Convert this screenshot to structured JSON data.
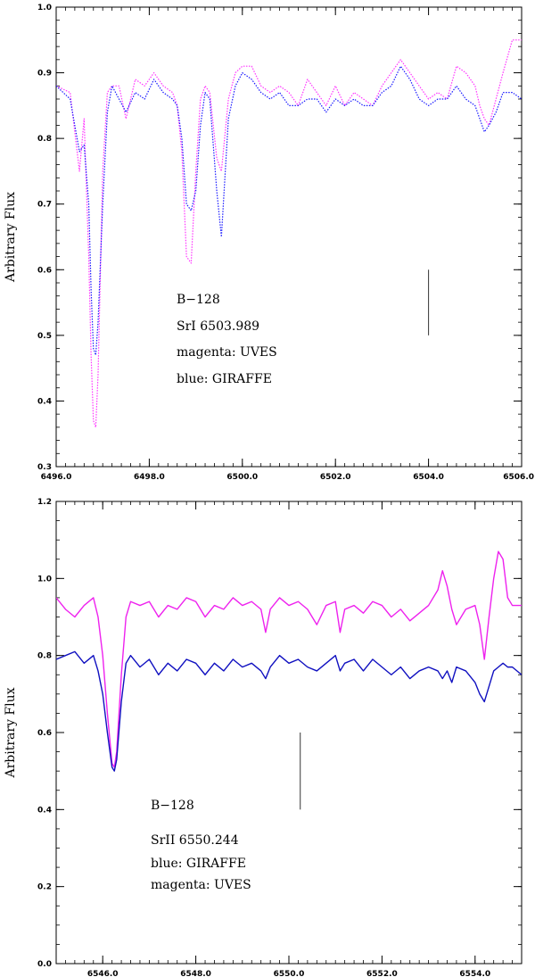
{
  "chart_data": [
    {
      "type": "line",
      "ylabel": "Arbitrary Flux",
      "xlabel": "",
      "xlim": [
        6496.0,
        6506.0
      ],
      "ylim": [
        0.3,
        1.0
      ],
      "xticks": [
        6496.0,
        6498.0,
        6500.0,
        6502.0,
        6504.0,
        6506.0
      ],
      "xtick_labels": [
        "6496.0",
        "6498.0",
        "6500.0",
        "6502.0",
        "6504.0",
        "6506.0"
      ],
      "yticks": [
        0.3,
        0.4,
        0.5,
        0.6,
        0.7,
        0.8,
        0.9,
        1.0
      ],
      "ytick_labels": [
        "0.3",
        "0.4",
        "0.5",
        "0.6",
        "0.7",
        "0.8",
        "0.9",
        "1.0"
      ],
      "annotations": [
        "B−128",
        "SrI  6503.989",
        "magenta:  UVES",
        "blue:  GIRAFFE"
      ],
      "marker_line": {
        "x": 6504.0,
        "y1": 0.5,
        "y2": 0.6
      },
      "series": [
        {
          "color": "#ff33ff",
          "style": "dotted",
          "x": [
            6496.0,
            6496.3,
            6496.5,
            6496.6,
            6496.7,
            6496.75,
            6496.8,
            6496.85,
            6496.9,
            6497.0,
            6497.1,
            6497.2,
            6497.35,
            6497.5,
            6497.7,
            6497.9,
            6498.1,
            6498.3,
            6498.5,
            6498.6,
            6498.7,
            6498.8,
            6498.9,
            6499.0,
            6499.1,
            6499.2,
            6499.3,
            6499.45,
            6499.55,
            6499.7,
            6499.85,
            6500.0,
            6500.2,
            6500.4,
            6500.6,
            6500.8,
            6501.0,
            6501.2,
            6501.4,
            6501.6,
            6501.8,
            6502.0,
            6502.2,
            6502.4,
            6502.6,
            6502.8,
            6503.0,
            6503.2,
            6503.4,
            6503.6,
            6503.8,
            6504.0,
            6504.2,
            6504.4,
            6504.6,
            6504.8,
            6505.0,
            6505.1,
            6505.2,
            6505.3,
            6505.45,
            6505.6,
            6505.8,
            6506.0
          ],
          "y": [
            0.88,
            0.87,
            0.75,
            0.83,
            0.62,
            0.47,
            0.37,
            0.36,
            0.44,
            0.75,
            0.87,
            0.88,
            0.88,
            0.83,
            0.89,
            0.88,
            0.9,
            0.88,
            0.87,
            0.85,
            0.78,
            0.62,
            0.61,
            0.75,
            0.86,
            0.88,
            0.87,
            0.77,
            0.75,
            0.86,
            0.9,
            0.91,
            0.91,
            0.88,
            0.87,
            0.88,
            0.87,
            0.85,
            0.89,
            0.87,
            0.85,
            0.88,
            0.85,
            0.87,
            0.86,
            0.85,
            0.88,
            0.9,
            0.92,
            0.9,
            0.88,
            0.86,
            0.87,
            0.86,
            0.91,
            0.9,
            0.88,
            0.85,
            0.83,
            0.82,
            0.86,
            0.9,
            0.95,
            0.95
          ]
        },
        {
          "color": "#1a1aff",
          "style": "dotted",
          "x": [
            6496.0,
            6496.3,
            6496.5,
            6496.6,
            6496.7,
            6496.75,
            6496.8,
            6496.85,
            6496.9,
            6497.0,
            6497.1,
            6497.2,
            6497.35,
            6497.5,
            6497.7,
            6497.9,
            6498.1,
            6498.3,
            6498.5,
            6498.6,
            6498.7,
            6498.8,
            6498.9,
            6499.0,
            6499.1,
            6499.2,
            6499.3,
            6499.45,
            6499.55,
            6499.7,
            6499.85,
            6500.0,
            6500.2,
            6500.4,
            6500.6,
            6500.8,
            6501.0,
            6501.2,
            6501.4,
            6501.6,
            6501.8,
            6502.0,
            6502.2,
            6502.4,
            6502.6,
            6502.8,
            6503.0,
            6503.2,
            6503.4,
            6503.6,
            6503.8,
            6504.0,
            6504.2,
            6504.4,
            6504.6,
            6504.8,
            6505.0,
            6505.1,
            6505.2,
            6505.3,
            6505.45,
            6505.6,
            6505.8,
            6506.0
          ],
          "y": [
            0.88,
            0.86,
            0.78,
            0.79,
            0.7,
            0.57,
            0.48,
            0.47,
            0.52,
            0.7,
            0.84,
            0.88,
            0.86,
            0.84,
            0.87,
            0.86,
            0.89,
            0.87,
            0.86,
            0.85,
            0.8,
            0.7,
            0.69,
            0.72,
            0.82,
            0.87,
            0.86,
            0.72,
            0.65,
            0.83,
            0.88,
            0.9,
            0.89,
            0.87,
            0.86,
            0.87,
            0.85,
            0.85,
            0.86,
            0.86,
            0.84,
            0.86,
            0.85,
            0.86,
            0.85,
            0.85,
            0.87,
            0.88,
            0.91,
            0.89,
            0.86,
            0.85,
            0.86,
            0.86,
            0.88,
            0.86,
            0.85,
            0.83,
            0.81,
            0.82,
            0.84,
            0.87,
            0.87,
            0.86
          ]
        }
      ]
    },
    {
      "type": "line",
      "ylabel": "Arbitrary Flux",
      "xlabel": "",
      "xlim": [
        6545.0,
        6555.0
      ],
      "ylim": [
        0.0,
        1.2
      ],
      "xticks": [
        6546.0,
        6548.0,
        6550.0,
        6552.0,
        6554.0
      ],
      "xtick_labels": [
        "6546.0",
        "6548.0",
        "6550.0",
        "6552.0",
        "6554.0"
      ],
      "yticks": [
        0.0,
        0.2,
        0.4,
        0.6,
        0.8,
        1.0,
        1.2
      ],
      "ytick_labels": [
        "0.0",
        "0.2",
        "0.4",
        "0.6",
        "0.8",
        "1.0",
        "1.2"
      ],
      "annotations": [
        "B−128",
        "SrII  6550.244",
        "blue:  GIRAFFE",
        "magenta:  UVES"
      ],
      "marker_line": {
        "x": 6550.244,
        "y1": 0.4,
        "y2": 0.6
      },
      "series": [
        {
          "color": "#ee22ee",
          "style": "solid",
          "x": [
            6545.0,
            6545.2,
            6545.4,
            6545.6,
            6545.8,
            6545.9,
            6546.0,
            6546.1,
            6546.2,
            6546.25,
            6546.3,
            6546.4,
            6546.5,
            6546.6,
            6546.8,
            6547.0,
            6547.2,
            6547.4,
            6547.6,
            6547.8,
            6548.0,
            6548.2,
            6548.4,
            6548.6,
            6548.8,
            6549.0,
            6549.2,
            6549.4,
            6549.5,
            6549.6,
            6549.8,
            6550.0,
            6550.2,
            6550.4,
            6550.6,
            6550.8,
            6551.0,
            6551.1,
            6551.2,
            6551.4,
            6551.6,
            6551.8,
            6552.0,
            6552.2,
            6552.4,
            6552.6,
            6552.8,
            6553.0,
            6553.2,
            6553.3,
            6553.4,
            6553.5,
            6553.6,
            6553.8,
            6554.0,
            6554.1,
            6554.2,
            6554.3,
            6554.4,
            6554.5,
            6554.6,
            6554.7,
            6554.8,
            6555.0
          ],
          "y": [
            0.95,
            0.92,
            0.9,
            0.93,
            0.95,
            0.9,
            0.8,
            0.65,
            0.52,
            0.51,
            0.55,
            0.75,
            0.9,
            0.94,
            0.93,
            0.94,
            0.9,
            0.93,
            0.92,
            0.95,
            0.94,
            0.9,
            0.93,
            0.92,
            0.95,
            0.93,
            0.94,
            0.92,
            0.86,
            0.92,
            0.95,
            0.93,
            0.94,
            0.92,
            0.88,
            0.93,
            0.94,
            0.86,
            0.92,
            0.93,
            0.91,
            0.94,
            0.93,
            0.9,
            0.92,
            0.89,
            0.91,
            0.93,
            0.97,
            1.02,
            0.98,
            0.92,
            0.88,
            0.92,
            0.93,
            0.88,
            0.79,
            0.9,
            1.0,
            1.07,
            1.05,
            0.95,
            0.93,
            0.93
          ]
        },
        {
          "color": "#1010c0",
          "style": "solid",
          "x": [
            6545.0,
            6545.2,
            6545.4,
            6545.6,
            6545.8,
            6545.9,
            6546.0,
            6546.1,
            6546.2,
            6546.25,
            6546.3,
            6546.4,
            6546.5,
            6546.6,
            6546.8,
            6547.0,
            6547.2,
            6547.4,
            6547.6,
            6547.8,
            6548.0,
            6548.2,
            6548.4,
            6548.6,
            6548.8,
            6549.0,
            6549.2,
            6549.4,
            6549.5,
            6549.6,
            6549.8,
            6550.0,
            6550.2,
            6550.4,
            6550.6,
            6550.8,
            6551.0,
            6551.1,
            6551.2,
            6551.4,
            6551.6,
            6551.8,
            6552.0,
            6552.2,
            6552.4,
            6552.6,
            6552.8,
            6553.0,
            6553.2,
            6553.3,
            6553.4,
            6553.5,
            6553.6,
            6553.8,
            6554.0,
            6554.1,
            6554.2,
            6554.3,
            6554.4,
            6554.5,
            6554.6,
            6554.7,
            6554.8,
            6555.0
          ],
          "y": [
            0.79,
            0.8,
            0.81,
            0.78,
            0.8,
            0.76,
            0.7,
            0.6,
            0.51,
            0.5,
            0.53,
            0.68,
            0.78,
            0.8,
            0.77,
            0.79,
            0.75,
            0.78,
            0.76,
            0.79,
            0.78,
            0.75,
            0.78,
            0.76,
            0.79,
            0.77,
            0.78,
            0.76,
            0.74,
            0.77,
            0.8,
            0.78,
            0.79,
            0.77,
            0.76,
            0.78,
            0.8,
            0.76,
            0.78,
            0.79,
            0.76,
            0.79,
            0.77,
            0.75,
            0.77,
            0.74,
            0.76,
            0.77,
            0.76,
            0.74,
            0.76,
            0.73,
            0.77,
            0.76,
            0.73,
            0.7,
            0.68,
            0.72,
            0.76,
            0.77,
            0.78,
            0.77,
            0.77,
            0.75
          ]
        }
      ]
    }
  ]
}
